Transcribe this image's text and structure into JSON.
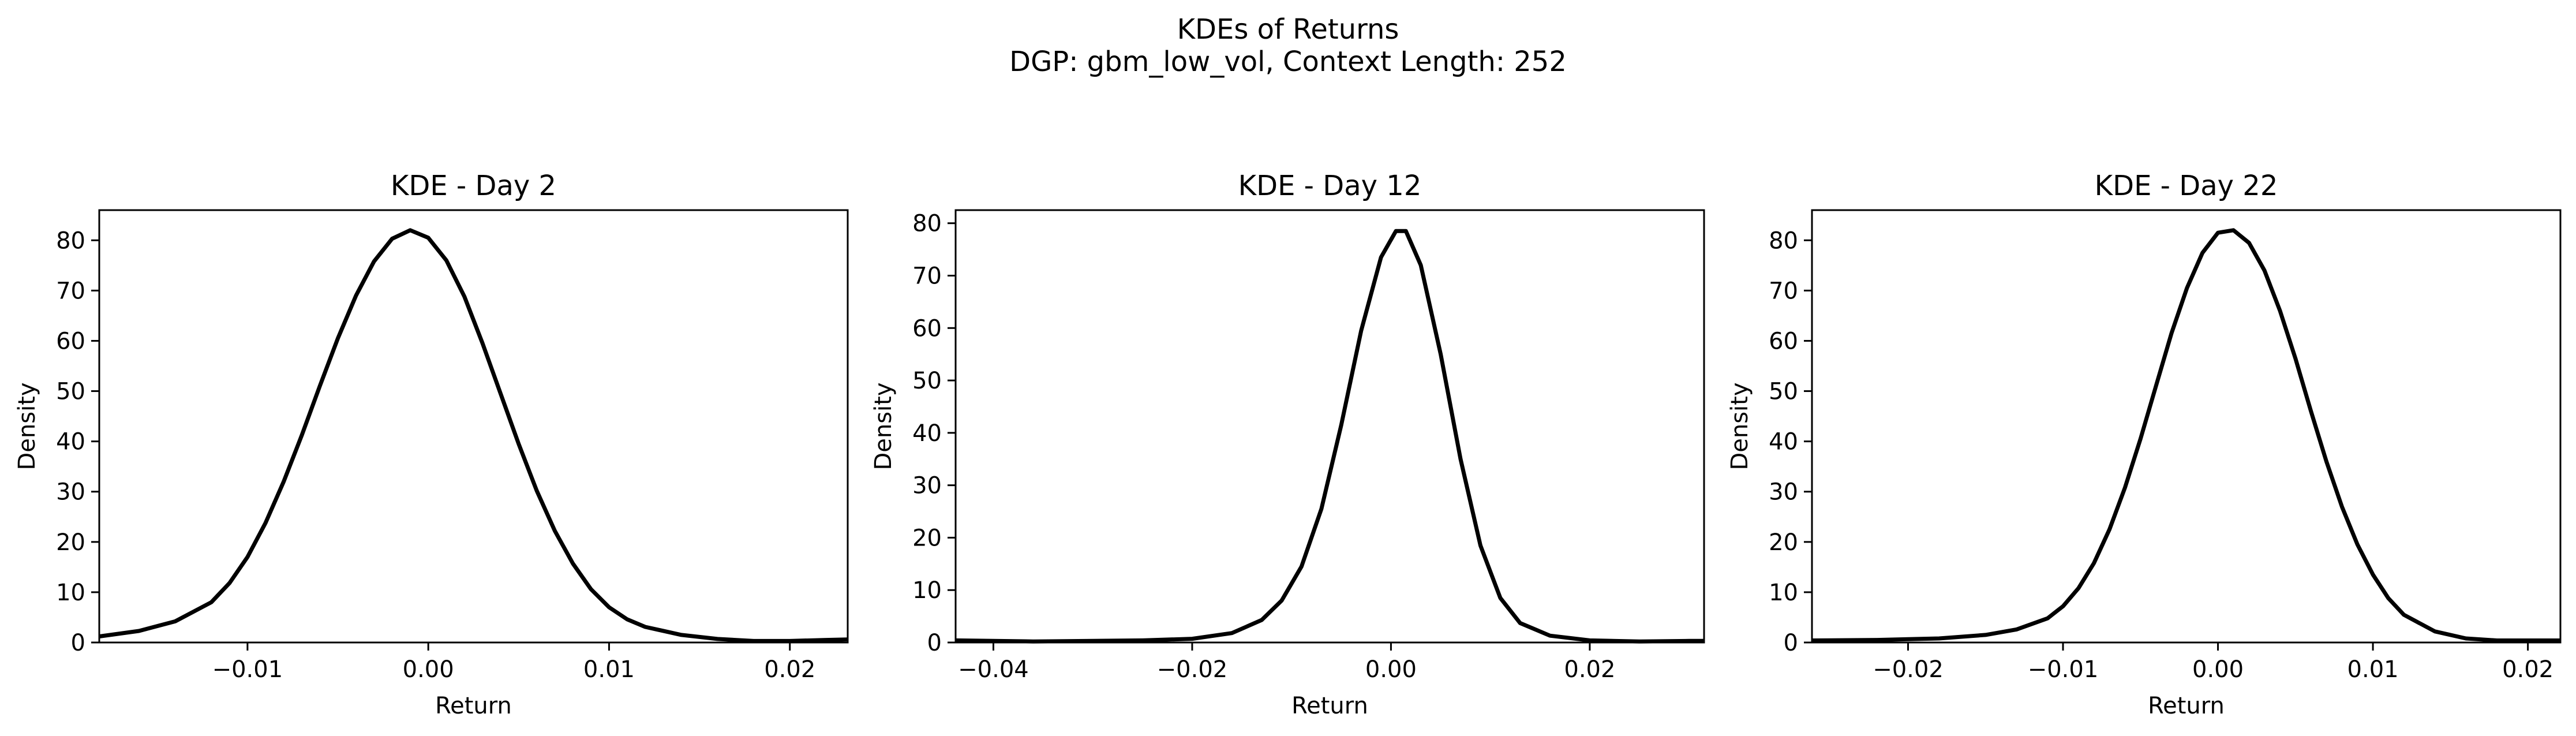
{
  "suptitle": {
    "line1": "KDEs of Returns",
    "line2": "DGP: gbm_low_vol, Context Length: 252"
  },
  "chart_data": [
    {
      "type": "line",
      "title": "KDE - Day 2",
      "xlabel": "Return",
      "ylabel": "Density",
      "xlim": [
        -0.0182,
        0.0232
      ],
      "ylim": [
        0,
        86
      ],
      "xticks": [
        -0.01,
        0.0,
        0.01,
        0.02
      ],
      "xtick_labels": [
        "−0.01",
        "0.00",
        "0.01",
        "0.02"
      ],
      "yticks": [
        0,
        10,
        20,
        30,
        40,
        50,
        60,
        70,
        80
      ],
      "ytick_labels": [
        "0",
        "10",
        "20",
        "30",
        "40",
        "50",
        "60",
        "70",
        "80"
      ],
      "grid": false,
      "series": [
        {
          "color": "#000000",
          "x": [
            -0.0182,
            -0.016,
            -0.014,
            -0.012,
            -0.011,
            -0.01,
            -0.009,
            -0.008,
            -0.007,
            -0.006,
            -0.005,
            -0.004,
            -0.003,
            -0.002,
            -0.001,
            0.0,
            0.001,
            0.002,
            0.003,
            0.004,
            0.005,
            0.006,
            0.007,
            0.008,
            0.009,
            0.01,
            0.011,
            0.012,
            0.014,
            0.016,
            0.018,
            0.02,
            0.022,
            0.0232
          ],
          "y": [
            1.2,
            2.3,
            4.2,
            8.0,
            11.8,
            17.0,
            23.8,
            32.0,
            41.2,
            51.0,
            60.5,
            69.0,
            75.8,
            80.3,
            82.0,
            80.5,
            76.0,
            68.8,
            59.5,
            49.5,
            39.5,
            30.2,
            22.2,
            15.7,
            10.6,
            7.0,
            4.6,
            3.1,
            1.5,
            0.7,
            0.3,
            0.3,
            0.5,
            0.6
          ]
        }
      ]
    },
    {
      "type": "line",
      "title": "KDE - Day 12",
      "xlabel": "Return",
      "ylabel": "Density",
      "xlim": [
        -0.0438,
        0.0315
      ],
      "ylim": [
        0,
        82.5
      ],
      "xticks": [
        -0.04,
        -0.02,
        0.0,
        0.02
      ],
      "xtick_labels": [
        "−0.04",
        "−0.02",
        "0.00",
        "0.02"
      ],
      "yticks": [
        0,
        10,
        20,
        30,
        40,
        50,
        60,
        70,
        80
      ],
      "ytick_labels": [
        "0",
        "10",
        "20",
        "30",
        "40",
        "50",
        "60",
        "70",
        "80"
      ],
      "grid": false,
      "series": [
        {
          "color": "#000000",
          "x": [
            -0.0438,
            -0.04,
            -0.036,
            -0.03,
            -0.025,
            -0.02,
            -0.016,
            -0.013,
            -0.011,
            -0.009,
            -0.007,
            -0.005,
            -0.003,
            -0.001,
            0.0005,
            0.0015,
            0.003,
            0.005,
            0.007,
            0.009,
            0.011,
            0.013,
            0.016,
            0.02,
            0.025,
            0.03,
            0.0315
          ],
          "y": [
            0.4,
            0.3,
            0.2,
            0.3,
            0.4,
            0.7,
            1.8,
            4.3,
            8.0,
            14.5,
            25.5,
            41.5,
            59.5,
            73.5,
            78.5,
            78.5,
            72.0,
            55.0,
            35.0,
            18.5,
            8.5,
            3.7,
            1.3,
            0.4,
            0.2,
            0.3,
            0.3
          ]
        }
      ]
    },
    {
      "type": "line",
      "title": "KDE - Day 22",
      "xlabel": "Return",
      "ylabel": "Density",
      "xlim": [
        -0.0262,
        0.0221
      ],
      "ylim": [
        0,
        86
      ],
      "xticks": [
        -0.02,
        -0.01,
        0.0,
        0.01,
        0.02
      ],
      "xtick_labels": [
        "−0.02",
        "−0.01",
        "0.00",
        "0.01",
        "0.02"
      ],
      "yticks": [
        0,
        10,
        20,
        30,
        40,
        50,
        60,
        70,
        80
      ],
      "ytick_labels": [
        "0",
        "10",
        "20",
        "30",
        "40",
        "50",
        "60",
        "70",
        "80"
      ],
      "grid": false,
      "series": [
        {
          "color": "#000000",
          "x": [
            -0.0262,
            -0.022,
            -0.018,
            -0.015,
            -0.013,
            -0.011,
            -0.01,
            -0.009,
            -0.008,
            -0.007,
            -0.006,
            -0.005,
            -0.004,
            -0.003,
            -0.002,
            -0.001,
            0.0,
            0.001,
            0.002,
            0.003,
            0.004,
            0.005,
            0.006,
            0.007,
            0.008,
            0.009,
            0.01,
            0.011,
            0.012,
            0.014,
            0.016,
            0.018,
            0.02,
            0.0221
          ],
          "y": [
            0.4,
            0.5,
            0.8,
            1.5,
            2.6,
            4.8,
            7.2,
            10.8,
            15.8,
            22.5,
            30.8,
            40.5,
            51.0,
            61.5,
            70.5,
            77.5,
            81.5,
            82.0,
            79.5,
            74.0,
            66.0,
            56.5,
            46.0,
            36.0,
            27.0,
            19.5,
            13.5,
            8.8,
            5.5,
            2.2,
            0.8,
            0.4,
            0.4,
            0.4
          ]
        }
      ]
    }
  ]
}
